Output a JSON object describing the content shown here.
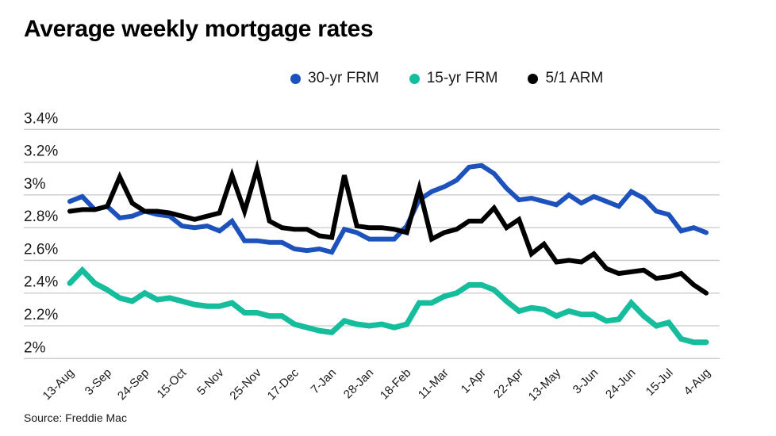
{
  "page": {
    "title": "Average weekly mortgage rates",
    "source": "Source: Freddie Mac"
  },
  "colors": {
    "background": "#ffffff",
    "gridline": "#c9c9c9",
    "axis_text": "#1a1a1a",
    "title_text": "#000000"
  },
  "chart_data": {
    "type": "line",
    "title": "Average weekly mortgage rates",
    "xlabel": "",
    "ylabel": "",
    "ylim": [
      2.0,
      3.4
    ],
    "grid": "horizontal",
    "legend_position": "top",
    "y_ticks": {
      "labels": [
        "3.4%",
        "3.2%",
        "3%",
        "2.8%",
        "2.6%",
        "2.4%",
        "2.2%",
        "2%"
      ],
      "values": [
        3.4,
        3.2,
        3.0,
        2.8,
        2.6,
        2.4,
        2.2,
        2.0
      ]
    },
    "x_tick_labels": [
      "13-Aug",
      "3-Sep",
      "24-Sep",
      "15-Oct",
      "5-Nov",
      "25-Nov",
      "17-Dec",
      "7-Jan",
      "28-Jan",
      "18-Feb",
      "11-Mar",
      "1-Apr",
      "22-Apr",
      "13-May",
      "3-Jun",
      "24-Jun",
      "15-Jul",
      "4-Aug"
    ],
    "x_tick_every_n_points": 3,
    "points_per_series": 52,
    "series": [
      {
        "name": "30-yr FRM",
        "color": "#1d52bd",
        "values": [
          2.96,
          2.99,
          2.91,
          2.93,
          2.86,
          2.87,
          2.9,
          2.88,
          2.87,
          2.81,
          2.8,
          2.81,
          2.78,
          2.84,
          2.72,
          2.72,
          2.71,
          2.71,
          2.67,
          2.66,
          2.67,
          2.65,
          2.79,
          2.77,
          2.73,
          2.73,
          2.73,
          2.81,
          2.97,
          3.02,
          3.05,
          3.09,
          3.17,
          3.18,
          3.13,
          3.04,
          2.97,
          2.98,
          2.96,
          2.94,
          3.0,
          2.95,
          2.99,
          2.96,
          2.93,
          3.02,
          2.98,
          2.9,
          2.88,
          2.78,
          2.8,
          2.77
        ]
      },
      {
        "name": "15-yr FRM",
        "color": "#16bd9c",
        "values": [
          2.46,
          2.54,
          2.46,
          2.42,
          2.37,
          2.35,
          2.4,
          2.36,
          2.37,
          2.35,
          2.33,
          2.32,
          2.32,
          2.34,
          2.28,
          2.28,
          2.26,
          2.26,
          2.21,
          2.19,
          2.17,
          2.16,
          2.23,
          2.21,
          2.2,
          2.21,
          2.19,
          2.21,
          2.34,
          2.34,
          2.38,
          2.4,
          2.45,
          2.45,
          2.42,
          2.35,
          2.29,
          2.31,
          2.3,
          2.26,
          2.29,
          2.27,
          2.27,
          2.23,
          2.24,
          2.34,
          2.26,
          2.2,
          2.22,
          2.12,
          2.1,
          2.1
        ]
      },
      {
        "name": "5/1 ARM",
        "color": "#000000",
        "values": [
          2.9,
          2.91,
          2.91,
          2.93,
          3.11,
          2.95,
          2.9,
          2.9,
          2.89,
          2.87,
          2.85,
          2.87,
          2.89,
          3.12,
          2.9,
          3.16,
          2.84,
          2.8,
          2.79,
          2.79,
          2.75,
          2.74,
          3.12,
          2.81,
          2.8,
          2.8,
          2.79,
          2.77,
          3.04,
          2.73,
          2.77,
          2.79,
          2.84,
          2.84,
          2.92,
          2.8,
          2.85,
          2.64,
          2.7,
          2.59,
          2.6,
          2.59,
          2.64,
          2.55,
          2.52,
          2.53,
          2.54,
          2.49,
          2.5,
          2.52,
          2.45,
          2.4
        ]
      }
    ]
  }
}
